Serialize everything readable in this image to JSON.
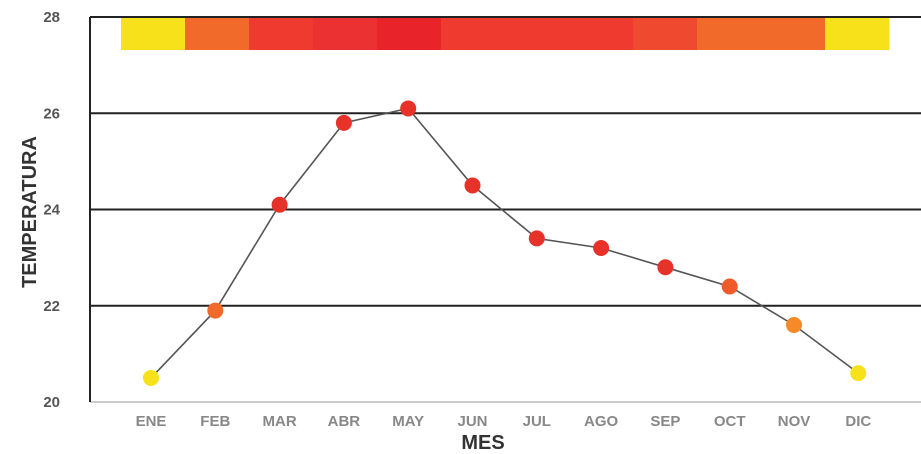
{
  "chart_data": {
    "type": "line",
    "title": "",
    "xlabel": "MES",
    "ylabel": "TEMPERATURA",
    "categories": [
      "ENE",
      "FEB",
      "MAR",
      "ABR",
      "MAY",
      "JUN",
      "JUL",
      "AGO",
      "SEP",
      "OCT",
      "NOV",
      "DIC"
    ],
    "series": [
      {
        "values": [
          20.5,
          21.9,
          24.1,
          25.8,
          26.1,
          24.5,
          23.4,
          23.2,
          22.8,
          22.4,
          21.6,
          20.6
        ],
        "point_colors": [
          "#f7e11b",
          "#f26a2a",
          "#e7322a",
          "#e7322a",
          "#e7322a",
          "#e7322a",
          "#e7322a",
          "#e7322a",
          "#e7322a",
          "#f05a2a",
          "#f58a26",
          "#f7e11b"
        ]
      }
    ],
    "heat_band_colors": [
      "#f7e11b",
      "#f26a2a",
      "#ee3a2f",
      "#ec3133",
      "#e8232a",
      "#ee3a2f",
      "#ee3a2f",
      "#ee3a2f",
      "#ef4a2f",
      "#f26a2a",
      "#f26a2a",
      "#f7e11b"
    ],
    "yticks": [
      20,
      22,
      24,
      26,
      28
    ],
    "ylim": [
      20,
      28
    ],
    "grid": true,
    "line_color": "#555555",
    "grid_color": "#222222"
  }
}
